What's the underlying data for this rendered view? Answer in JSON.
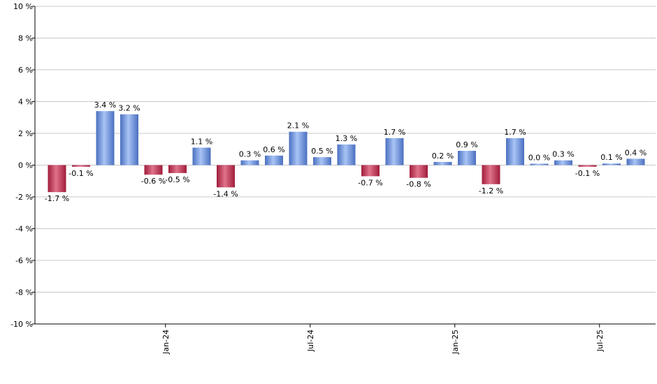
{
  "chart_data": {
    "type": "bar",
    "title": "",
    "xlabel": "",
    "ylabel": "",
    "ylim": [
      -10,
      10
    ],
    "y_ticks": [
      10,
      8,
      6,
      4,
      2,
      0,
      -2,
      -4,
      -6,
      -8,
      -10
    ],
    "y_tick_labels": [
      "10 %",
      "8 %",
      "6 %",
      "4 %",
      "2 %",
      "0 %",
      "-2 %",
      "-4 %",
      "-6 %",
      "-8 %",
      "-10 %"
    ],
    "x_tick_labels": [
      {
        "label": "Jan-24",
        "index": 4.5
      },
      {
        "label": "Jul-24",
        "index": 10.5
      },
      {
        "label": "Jan-25",
        "index": 16.5
      },
      {
        "label": "Jul-25",
        "index": 22.5
      }
    ],
    "values": [
      -1.7,
      -0.1,
      3.4,
      3.2,
      -0.6,
      -0.5,
      1.1,
      -1.4,
      0.3,
      0.6,
      2.1,
      0.5,
      1.3,
      -0.7,
      1.7,
      -0.8,
      0.2,
      0.9,
      -1.2,
      1.7,
      0.0,
      0.3,
      -0.1,
      0.1,
      0.4
    ],
    "value_labels": [
      "-1.7 %",
      "-0.1 %",
      "3.4 %",
      "3.2 %",
      "-0.6 %",
      "-0.5 %",
      "1.1 %",
      "-1.4 %",
      "0.3 %",
      "0.6 %",
      "2.1 %",
      "0.5 %",
      "1.3 %",
      "-0.7 %",
      "1.7 %",
      "-0.8 %",
      "0.2 %",
      "0.9 %",
      "-1.2 %",
      "1.7 %",
      "0.0 %",
      "0.3 %",
      "-0.1 %",
      "0.1 %",
      "0.4 %"
    ],
    "grid": true,
    "colors": {
      "positive_light": "#a9c4f5",
      "positive_dark": "#4a6fc0",
      "negative_light": "#e0728a",
      "negative_dark": "#a01c3a",
      "grid": "#c8c8c8",
      "axis": "#000000"
    }
  }
}
